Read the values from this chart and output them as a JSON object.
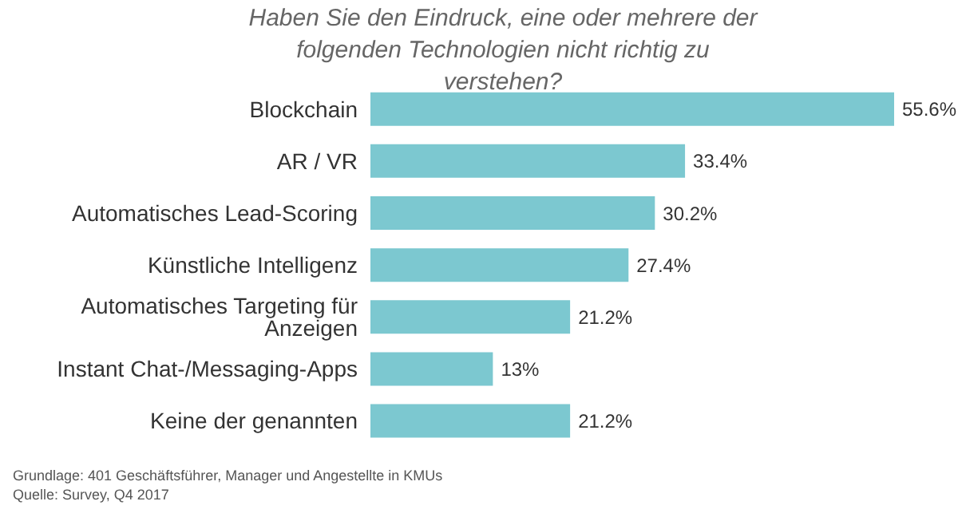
{
  "chart_data": {
    "type": "bar",
    "orientation": "horizontal",
    "title": "Haben Sie den Eindruck, eine oder mehrere der folgenden Technologien nicht richtig zu verstehen?",
    "categories": [
      "Blockchain",
      "AR / VR",
      "Automatisches Lead-Scoring",
      "Künstliche Intelligenz",
      "Automatisches Targeting für Anzeigen",
      "Instant Chat-/Messaging-Apps",
      "Keine der genannten"
    ],
    "values": [
      55.6,
      33.4,
      30.2,
      27.4,
      21.2,
      13,
      21.2
    ],
    "value_labels": [
      "55.6%",
      "33.4%",
      "30.2%",
      "27.4%",
      "21.2%",
      "13%",
      "21.2%"
    ],
    "color": "#7cc8d0",
    "annotations": [
      "Grundlage: 401 Geschäftsführer, Manager und Angestellte in KMUs",
      "Quelle: Survey, Q4 2017"
    ]
  }
}
